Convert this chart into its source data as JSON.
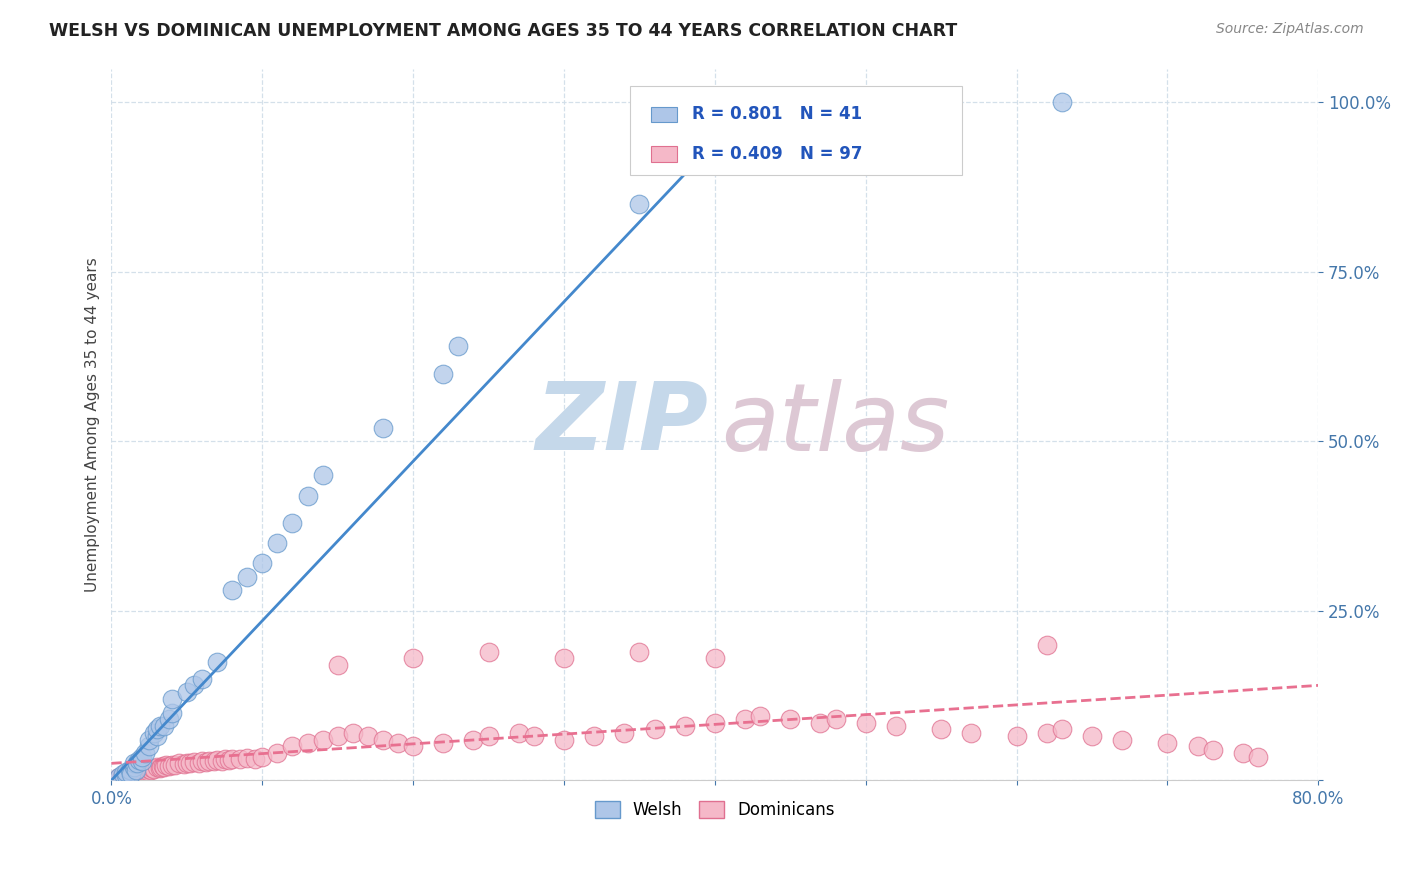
{
  "title": "WELSH VS DOMINICAN UNEMPLOYMENT AMONG AGES 35 TO 44 YEARS CORRELATION CHART",
  "source": "Source: ZipAtlas.com",
  "ylabel": "Unemployment Among Ages 35 to 44 years",
  "xlim": [
    0.0,
    0.8
  ],
  "ylim": [
    0.0,
    1.05
  ],
  "welsh_R": 0.801,
  "welsh_N": 41,
  "dominican_R": 0.409,
  "dominican_N": 97,
  "welsh_color": "#aec6e8",
  "welsh_edge_color": "#6699cc",
  "dominican_color": "#f5b8c8",
  "dominican_edge_color": "#e07090",
  "welsh_line_color": "#4488cc",
  "dominican_line_color": "#e87090",
  "legend_label_welsh": "Welsh",
  "legend_label_dominican": "Dominicans",
  "welsh_x": [
    0.005,
    0.008,
    0.01,
    0.01,
    0.012,
    0.013,
    0.015,
    0.015,
    0.016,
    0.017,
    0.018,
    0.02,
    0.02,
    0.022,
    0.025,
    0.025,
    0.028,
    0.03,
    0.03,
    0.032,
    0.035,
    0.038,
    0.04,
    0.04,
    0.05,
    0.055,
    0.06,
    0.07,
    0.08,
    0.09,
    0.1,
    0.11,
    0.12,
    0.13,
    0.14,
    0.18,
    0.22,
    0.23,
    0.35,
    0.38,
    0.63
  ],
  "welsh_y": [
    0.005,
    0.01,
    0.008,
    0.012,
    0.015,
    0.01,
    0.02,
    0.025,
    0.015,
    0.025,
    0.03,
    0.028,
    0.035,
    0.04,
    0.05,
    0.06,
    0.07,
    0.065,
    0.075,
    0.08,
    0.08,
    0.09,
    0.1,
    0.12,
    0.13,
    0.14,
    0.15,
    0.175,
    0.28,
    0.3,
    0.32,
    0.35,
    0.38,
    0.42,
    0.45,
    0.52,
    0.6,
    0.64,
    0.85,
    1.0,
    1.0
  ],
  "dom_x": [
    0.005,
    0.007,
    0.009,
    0.01,
    0.011,
    0.012,
    0.013,
    0.014,
    0.015,
    0.016,
    0.017,
    0.018,
    0.019,
    0.02,
    0.021,
    0.022,
    0.023,
    0.024,
    0.025,
    0.026,
    0.027,
    0.028,
    0.03,
    0.032,
    0.033,
    0.034,
    0.035,
    0.036,
    0.038,
    0.04,
    0.042,
    0.045,
    0.048,
    0.05,
    0.052,
    0.055,
    0.058,
    0.06,
    0.063,
    0.065,
    0.068,
    0.07,
    0.073,
    0.075,
    0.078,
    0.08,
    0.085,
    0.09,
    0.095,
    0.1,
    0.11,
    0.12,
    0.13,
    0.14,
    0.15,
    0.16,
    0.17,
    0.18,
    0.19,
    0.2,
    0.22,
    0.24,
    0.25,
    0.27,
    0.28,
    0.3,
    0.32,
    0.34,
    0.36,
    0.38,
    0.4,
    0.42,
    0.43,
    0.45,
    0.47,
    0.48,
    0.5,
    0.52,
    0.55,
    0.57,
    0.6,
    0.62,
    0.63,
    0.65,
    0.67,
    0.7,
    0.72,
    0.73,
    0.75,
    0.76,
    0.15,
    0.2,
    0.25,
    0.3,
    0.35,
    0.4,
    0.62
  ],
  "dom_y": [
    0.005,
    0.007,
    0.006,
    0.008,
    0.009,
    0.007,
    0.01,
    0.008,
    0.012,
    0.01,
    0.013,
    0.011,
    0.014,
    0.012,
    0.015,
    0.013,
    0.016,
    0.014,
    0.017,
    0.015,
    0.018,
    0.016,
    0.02,
    0.018,
    0.019,
    0.021,
    0.02,
    0.022,
    0.021,
    0.023,
    0.022,
    0.025,
    0.024,
    0.026,
    0.025,
    0.027,
    0.026,
    0.028,
    0.027,
    0.029,
    0.028,
    0.03,
    0.029,
    0.031,
    0.03,
    0.032,
    0.031,
    0.033,
    0.032,
    0.034,
    0.04,
    0.05,
    0.055,
    0.06,
    0.065,
    0.07,
    0.065,
    0.06,
    0.055,
    0.05,
    0.055,
    0.06,
    0.065,
    0.07,
    0.065,
    0.06,
    0.065,
    0.07,
    0.075,
    0.08,
    0.085,
    0.09,
    0.095,
    0.09,
    0.085,
    0.09,
    0.085,
    0.08,
    0.075,
    0.07,
    0.065,
    0.07,
    0.075,
    0.065,
    0.06,
    0.055,
    0.05,
    0.045,
    0.04,
    0.035,
    0.17,
    0.18,
    0.19,
    0.18,
    0.19,
    0.18,
    0.2
  ],
  "welsh_line_x": [
    0.0,
    0.425
  ],
  "welsh_line_y": [
    0.0,
    1.0
  ],
  "dom_line_x": [
    0.0,
    0.8
  ],
  "dom_line_y": [
    0.025,
    0.14
  ],
  "yticks": [
    0.0,
    0.25,
    0.5,
    0.75,
    1.0
  ],
  "ytick_labels": [
    "",
    "25.0%",
    "50.0%",
    "75.0%",
    "100.0%"
  ],
  "xtick_labels": [
    "0.0%",
    "",
    "",
    "",
    "",
    "",
    "",
    "",
    "80.0%"
  ],
  "grid_color": "#d0dde8",
  "spine_color": "#cccccc",
  "tick_color": "#4477aa",
  "title_color": "#222222",
  "source_color": "#888888",
  "watermark_zip_color": "#c5d8ea",
  "watermark_atlas_color": "#ddc8d4"
}
